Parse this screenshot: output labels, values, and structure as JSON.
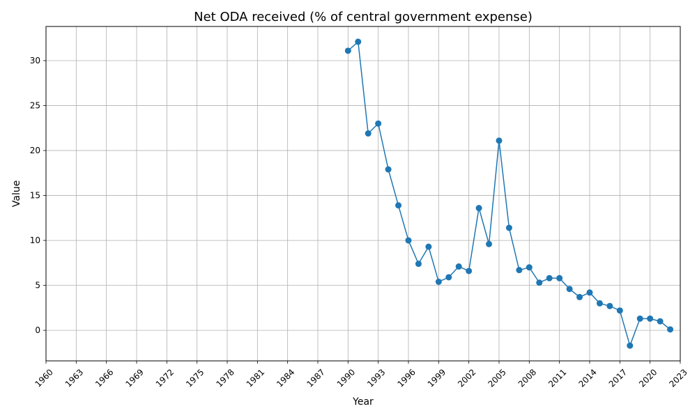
{
  "chart_data": {
    "type": "line",
    "title": "Net ODA received (% of central government expense)",
    "xlabel": "Year",
    "ylabel": "Value",
    "xlim": [
      1960,
      2023
    ],
    "ylim": [
      -3.4,
      33.8
    ],
    "x_ticks": [
      1960,
      1963,
      1966,
      1969,
      1972,
      1975,
      1978,
      1981,
      1984,
      1987,
      1990,
      1993,
      1996,
      1999,
      2002,
      2005,
      2008,
      2011,
      2014,
      2017,
      2020,
      2023
    ],
    "y_ticks": [
      0,
      5,
      10,
      15,
      20,
      25,
      30
    ],
    "grid": true,
    "series": [
      {
        "color": "#1f77b4",
        "x": [
          1990,
          1991,
          1992,
          1993,
          1994,
          1995,
          1996,
          1997,
          1998,
          1999,
          2000,
          2001,
          2002,
          2003,
          2004,
          2005,
          2006,
          2007,
          2008,
          2009,
          2010,
          2011,
          2012,
          2013,
          2014,
          2015,
          2016,
          2017,
          2018,
          2019,
          2020,
          2021,
          2022
        ],
        "y": [
          31.1,
          32.1,
          21.9,
          23.0,
          17.9,
          13.9,
          10.0,
          7.4,
          9.3,
          5.4,
          5.9,
          7.1,
          6.6,
          13.6,
          9.6,
          21.1,
          11.4,
          6.7,
          7.0,
          5.3,
          5.8,
          5.8,
          4.6,
          3.7,
          4.2,
          3.0,
          2.7,
          2.2,
          -1.7,
          1.3,
          1.3,
          1.0,
          0.1
        ]
      }
    ]
  }
}
